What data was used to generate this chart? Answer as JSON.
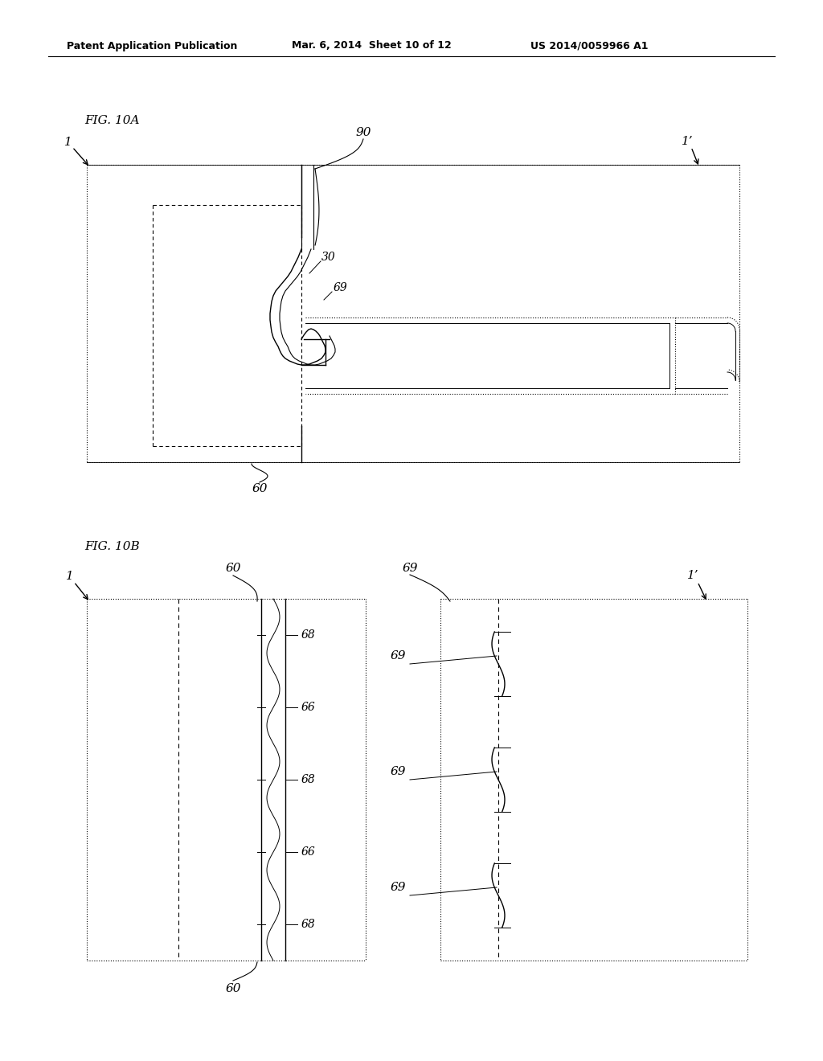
{
  "bg_color": "#ffffff",
  "header_text": "Patent Application Publication",
  "header_date": "Mar. 6, 2014  Sheet 10 of 12",
  "header_patent": "US 2014/0059966 A1",
  "fig10a_label": "FIG. 10A",
  "fig10b_label": "FIG. 10B"
}
